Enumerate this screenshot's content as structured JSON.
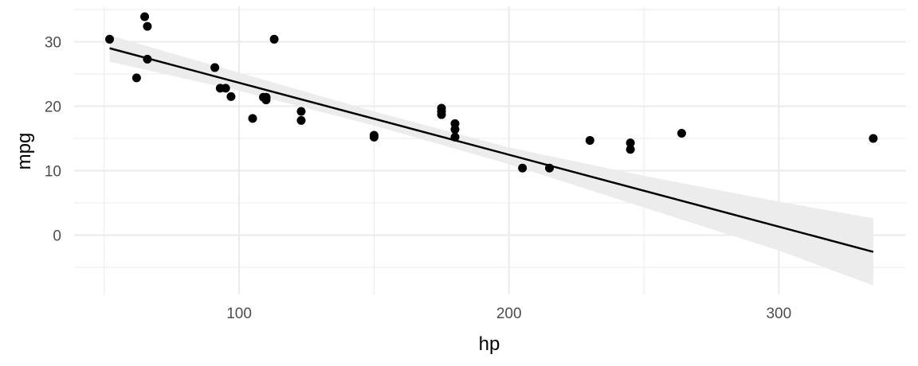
{
  "chart_data": {
    "type": "scatter",
    "title": "",
    "xlabel": "hp",
    "ylabel": "mpg",
    "xlim": [
      38.85,
      347.15
    ],
    "ylim": [
      -9.2,
      35.5
    ],
    "x_ticks": [
      100,
      200,
      300
    ],
    "x_minor_ticks": [
      50,
      150,
      250
    ],
    "y_ticks": [
      0,
      10,
      20,
      30
    ],
    "y_minor_ticks": [
      -5,
      5,
      15,
      25,
      35
    ],
    "grid": true,
    "legend": "none",
    "points": [
      {
        "x": 110,
        "y": 21.0
      },
      {
        "x": 110,
        "y": 21.0
      },
      {
        "x": 93,
        "y": 22.8
      },
      {
        "x": 110,
        "y": 21.4
      },
      {
        "x": 175,
        "y": 18.7
      },
      {
        "x": 105,
        "y": 18.1
      },
      {
        "x": 245,
        "y": 14.3
      },
      {
        "x": 62,
        "y": 24.4
      },
      {
        "x": 95,
        "y": 22.8
      },
      {
        "x": 123,
        "y": 19.2
      },
      {
        "x": 123,
        "y": 17.8
      },
      {
        "x": 180,
        "y": 16.4
      },
      {
        "x": 180,
        "y": 17.3
      },
      {
        "x": 180,
        "y": 15.2
      },
      {
        "x": 205,
        "y": 10.4
      },
      {
        "x": 215,
        "y": 10.4
      },
      {
        "x": 230,
        "y": 14.7
      },
      {
        "x": 66,
        "y": 32.4
      },
      {
        "x": 52,
        "y": 30.4
      },
      {
        "x": 65,
        "y": 33.9
      },
      {
        "x": 97,
        "y": 21.5
      },
      {
        "x": 150,
        "y": 15.5
      },
      {
        "x": 150,
        "y": 15.2
      },
      {
        "x": 245,
        "y": 13.3
      },
      {
        "x": 175,
        "y": 19.2
      },
      {
        "x": 66,
        "y": 27.3
      },
      {
        "x": 91,
        "y": 26.0
      },
      {
        "x": 113,
        "y": 30.4
      },
      {
        "x": 264,
        "y": 15.8
      },
      {
        "x": 175,
        "y": 19.7
      },
      {
        "x": 335,
        "y": 15.0
      },
      {
        "x": 109,
        "y": 21.4
      }
    ],
    "fit_line": {
      "x": [
        52,
        335
      ],
      "y": [
        29.0,
        -2.6
      ]
    },
    "confidence_band": {
      "x": [
        52,
        100,
        150,
        200,
        250,
        300,
        335
      ],
      "upper": [
        31.0,
        25.2,
        19.2,
        13.6,
        9.2,
        5.2,
        2.6
      ],
      "lower": [
        26.9,
        22.4,
        17.0,
        11.0,
        4.3,
        -2.4,
        -7.8
      ]
    },
    "colors": {
      "points": "#000000",
      "line": "#000000",
      "band": "#ebebeb",
      "grid": "#ebebeb",
      "tick_text": "#4d4d4d"
    }
  }
}
